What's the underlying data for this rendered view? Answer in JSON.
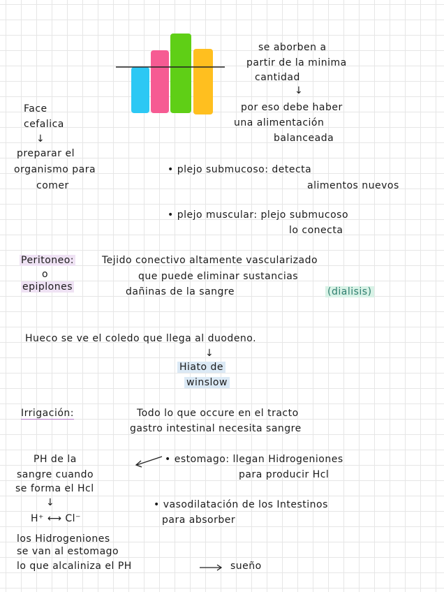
{
  "colors": {
    "bar_blue": "#2cc8f4",
    "bar_pink": "#f65b93",
    "bar_green": "#5fcf16",
    "bar_yellow": "#ffbf1f",
    "highlight_blue": "#dbe9f5",
    "highlight_green": "#d8f2e6",
    "highlight_purple": "#efe2f4"
  },
  "notes": {
    "top_right": [
      "se aborben a",
      "partir de la minima",
      "cantidad",
      "por eso debe haber",
      "una alimentación",
      "balanceada"
    ],
    "fase": [
      "Face",
      "cefalica",
      "preparar el",
      "organismo para",
      "comer"
    ],
    "plexo_sub": [
      "• plejo submucoso: detecta",
      "alimentos nuevos"
    ],
    "plexo_mus": [
      "• plejo muscular: plejo submucoso",
      "lo conecta"
    ],
    "peritoneo": {
      "term": "Peritoneo:",
      "o": "o",
      "epiplones": "epiplones",
      "line1": "Tejido conectivo altamente vascularizado",
      "line2": "que puede eliminar sustancias",
      "line3_a": "dañinas de la sangre",
      "dialisis": "(dialisis)"
    },
    "hueco": "Hueco se ve el coledo que llega al duodeno.",
    "hiato": [
      "Hiato de",
      "winslow"
    ],
    "irrigacion": {
      "term": "Irrigación:",
      "line1": "Todo lo que occure en el tracto",
      "line2": "gastro intestinal necesita sangre"
    },
    "ph": [
      "PH de la",
      "sangre cuando",
      "se forma el Hcl"
    ],
    "ions": "H⁺ ⟷ Cl⁻",
    "estomago": [
      "• estomago: llegan Hidrogeniones",
      "para producir Hcl"
    ],
    "vaso": [
      "• vasodilatación de los Intestinos",
      "para absorber"
    ],
    "bottom": [
      "los Hidrogeniones",
      "se van al estomago",
      "lo que alcaliniza el PH",
      "sueño"
    ],
    "arrow_down": "↓"
  }
}
